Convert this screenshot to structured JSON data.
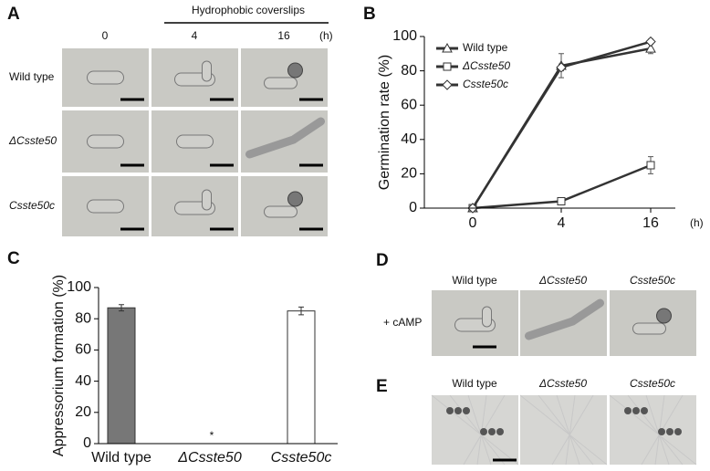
{
  "panel_labels": [
    "A",
    "B",
    "C",
    "D",
    "E"
  ],
  "panel_a": {
    "header": "Hydrophobic coverslips",
    "columns": [
      "0",
      "4",
      "16"
    ],
    "unit": "(h)",
    "rows": [
      "Wild type",
      "ΔCsste50",
      "Csste50c"
    ]
  },
  "panel_d": {
    "columns": [
      "Wild type",
      "ΔCsste50",
      "Csste50c"
    ],
    "row": "+ cAMP"
  },
  "panel_e": {
    "columns": [
      "Wild type",
      "ΔCsste50",
      "Csste50c"
    ]
  },
  "chart_data": [
    {
      "type": "line",
      "ylabel": "Germination rate (%)",
      "x_unit": "(h)",
      "categories": [
        "0",
        "4",
        "16"
      ],
      "ylim": [
        0,
        100
      ],
      "yticks": [
        0,
        20,
        40,
        60,
        80,
        100
      ],
      "series": [
        {
          "name": "Wild type",
          "color": "#333333",
          "marker": "triangle",
          "values": [
            0,
            83,
            93
          ],
          "errors": [
            1,
            7,
            3
          ]
        },
        {
          "name": "ΔCsste50",
          "color": "#333333",
          "marker": "square",
          "values": [
            0,
            4,
            25
          ],
          "errors": [
            1,
            1.5,
            5
          ]
        },
        {
          "name": "Csste50c",
          "color": "#333333",
          "marker": "diamond",
          "values": [
            0,
            82,
            97
          ],
          "errors": [
            1,
            2,
            1.5
          ]
        }
      ]
    },
    {
      "type": "bar",
      "ylabel": "Appressorium formation (%)",
      "categories": [
        "Wild type",
        "ΔCsste50",
        "Csste50c"
      ],
      "values": [
        87,
        0,
        85
      ],
      "errors": [
        2,
        0,
        2.5
      ],
      "colors": [
        "#777777",
        "#777777",
        "#ffffff"
      ],
      "annotation": "*",
      "ylim": [
        0,
        100
      ],
      "yticks": [
        0,
        20,
        40,
        60,
        80,
        100
      ]
    }
  ]
}
